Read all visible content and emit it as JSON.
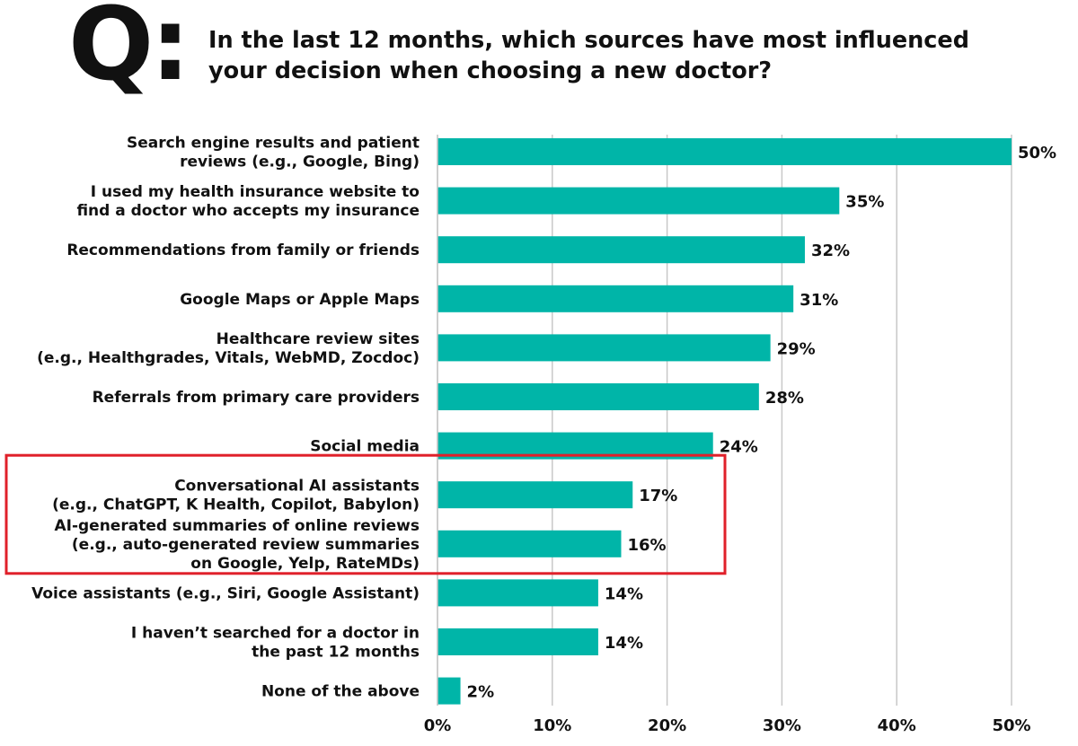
{
  "header": {
    "q_mark": "Q:",
    "question_line1": "In the last 12 months, which sources have most influenced",
    "question_line2": "your decision when choosing a new doctor?"
  },
  "chart_data": {
    "type": "bar",
    "orientation": "horizontal",
    "bar_color": "#00B5A8",
    "highlight_color": "#E0202A",
    "highlighted_categories": [
      7,
      8
    ],
    "grid": true,
    "xlim": [
      0,
      50
    ],
    "x_ticks": [
      0,
      10,
      20,
      30,
      40,
      50
    ],
    "x_tick_labels": [
      "0%",
      "10%",
      "20%",
      "30%",
      "40%",
      "50%"
    ],
    "categories": [
      [
        "Search engine results and patient",
        "reviews (e.g., Google, Bing)"
      ],
      [
        "I used my health insurance website to",
        "find a doctor who accepts my insurance"
      ],
      [
        "Recommendations from family or friends"
      ],
      [
        "Google Maps or Apple Maps"
      ],
      [
        "Healthcare review sites",
        "(e.g., Healthgrades, Vitals, WebMD, Zocdoc)"
      ],
      [
        "Referrals from primary care providers"
      ],
      [
        "Social media"
      ],
      [
        "Conversational AI assistants",
        "(e.g., ChatGPT, K Health, Copilot, Babylon)"
      ],
      [
        "AI-generated summaries of online reviews",
        "(e.g., auto-generated review summaries",
        "on Google, Yelp, RateMDs)"
      ],
      [
        "Voice assistants (e.g., Siri, Google Assistant)"
      ],
      [
        "I haven’t searched for a doctor in",
        "the past 12 months"
      ],
      [
        "None of the above"
      ]
    ],
    "values": [
      50,
      35,
      32,
      31,
      29,
      28,
      24,
      17,
      16,
      14,
      14,
      2
    ],
    "value_labels": [
      "50%",
      "35%",
      "32%",
      "31%",
      "29%",
      "28%",
      "24%",
      "17%",
      "16%",
      "14%",
      "14%",
      "2%"
    ]
  }
}
